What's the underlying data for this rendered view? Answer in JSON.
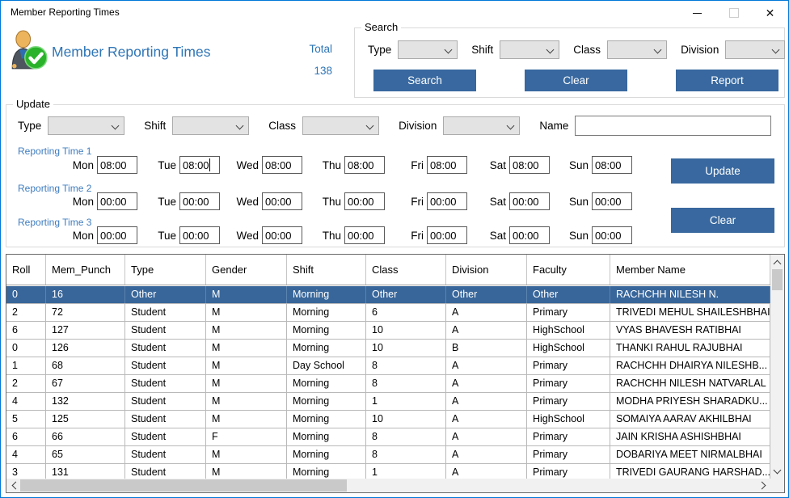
{
  "window": {
    "title": "Member Reporting Times"
  },
  "header": {
    "app_title": "Member Reporting Times",
    "total_label": "Total",
    "total_value": "138"
  },
  "search": {
    "legend": "Search",
    "type_label": "Type",
    "shift_label": "Shift",
    "class_label": "Class",
    "division_label": "Division",
    "search_button": "Search",
    "clear_button": "Clear",
    "report_button": "Report"
  },
  "update": {
    "legend": "Update",
    "type_label": "Type",
    "shift_label": "Shift",
    "class_label": "Class",
    "division_label": "Division",
    "name_label": "Name",
    "name_value": "",
    "update_button": "Update",
    "clear_button": "Clear",
    "focused_field": {
      "row": 0,
      "day": "Tue"
    },
    "reporting_times": [
      {
        "label": "Reporting Time 1",
        "days": [
          {
            "day": "Mon",
            "value": "08:00"
          },
          {
            "day": "Tue",
            "value": "08:00"
          },
          {
            "day": "Wed",
            "value": "08:00"
          },
          {
            "day": "Thu",
            "value": "08:00"
          },
          {
            "day": "Fri",
            "value": "08:00"
          },
          {
            "day": "Sat",
            "value": "08:00"
          },
          {
            "day": "Sun",
            "value": "08:00"
          }
        ]
      },
      {
        "label": "Reporting Time 2",
        "days": [
          {
            "day": "Mon",
            "value": "00:00"
          },
          {
            "day": "Tue",
            "value": "00:00"
          },
          {
            "day": "Wed",
            "value": "00:00"
          },
          {
            "day": "Thu",
            "value": "00:00"
          },
          {
            "day": "Fri",
            "value": "00:00"
          },
          {
            "day": "Sat",
            "value": "00:00"
          },
          {
            "day": "Sun",
            "value": "00:00"
          }
        ]
      },
      {
        "label": "Reporting Time 3",
        "days": [
          {
            "day": "Mon",
            "value": "00:00"
          },
          {
            "day": "Tue",
            "value": "00:00"
          },
          {
            "day": "Wed",
            "value": "00:00"
          },
          {
            "day": "Thu",
            "value": "00:00"
          },
          {
            "day": "Fri",
            "value": "00:00"
          },
          {
            "day": "Sat",
            "value": "00:00"
          },
          {
            "day": "Sun",
            "value": "00:00"
          }
        ]
      }
    ]
  },
  "grid": {
    "columns": [
      "Roll",
      "Mem_Punch",
      "Type",
      "Gender",
      "Shift",
      "Class",
      "Division",
      "Faculty",
      "Member Name"
    ],
    "selected_row_index": 0,
    "rows": [
      [
        "0",
        "16",
        "Other",
        "M",
        "Morning",
        "Other",
        "Other",
        "Other",
        "RACHCHH NILESH N."
      ],
      [
        "2",
        "72",
        "Student",
        "M",
        "Morning",
        "6",
        "A",
        "Primary",
        "TRIVEDI MEHUL SHAILESHBHAI"
      ],
      [
        "6",
        "127",
        "Student",
        "M",
        "Morning",
        "10",
        "A",
        "HighSchool",
        "VYAS BHAVESH RATIBHAI"
      ],
      [
        "0",
        "126",
        "Student",
        "M",
        "Morning",
        "10",
        "B",
        "HighSchool",
        "THANKI RAHUL RAJUBHAI"
      ],
      [
        "1",
        "68",
        "Student",
        "M",
        "Day School",
        "8",
        "A",
        "Primary",
        "RACHCHH DHAIRYA NILESHB..."
      ],
      [
        "2",
        "67",
        "Student",
        "M",
        "Morning",
        "8",
        "A",
        "Primary",
        "RACHCHH NILESH NATVARLAL"
      ],
      [
        "4",
        "132",
        "Student",
        "M",
        "Morning",
        "1",
        "A",
        "Primary",
        "MODHA PRIYESH SHARADKU..."
      ],
      [
        "5",
        "125",
        "Student",
        "M",
        "Morning",
        "10",
        "A",
        "HighSchool",
        "SOMAIYA AARAV AKHILBHAI"
      ],
      [
        "6",
        "66",
        "Student",
        "F",
        "Morning",
        "8",
        "A",
        "Primary",
        "JAIN KRISHA ASHISHBHAI"
      ],
      [
        "4",
        "65",
        "Student",
        "M",
        "Morning",
        "8",
        "A",
        "Primary",
        "DOBARIYA MEET NIRMALBHAI"
      ],
      [
        "3",
        "131",
        "Student",
        "M",
        "Morning",
        "1",
        "A",
        "Primary",
        "TRIVEDI GAURANG HARSHAD..."
      ]
    ]
  },
  "icons": {
    "app": "member-check-icon",
    "minimize": "minimize-icon",
    "maximize": "maximize-icon",
    "close": "close-icon",
    "close_glyph": "✕"
  },
  "colors": {
    "accent_blue": "#2E75B6",
    "button_blue": "#38689F",
    "selected_row": "#38669A",
    "window_border": "#0078D7"
  }
}
